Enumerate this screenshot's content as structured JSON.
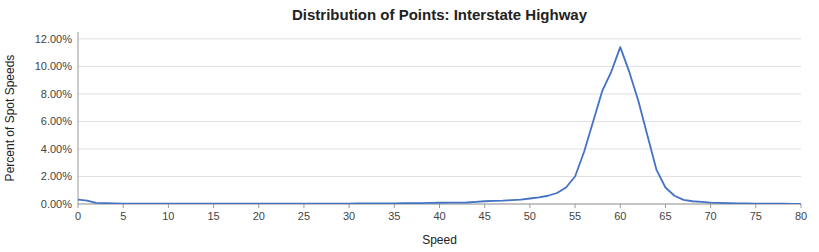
{
  "chart_data": {
    "type": "line",
    "title": "Distribution of Points:  Interstate Highway",
    "x_label": "Speed",
    "y_label": "Percent of Spot Speeds",
    "x": [
      0,
      1,
      2,
      3,
      4,
      5,
      6,
      7,
      8,
      9,
      10,
      11,
      12,
      13,
      14,
      15,
      16,
      17,
      18,
      19,
      20,
      21,
      22,
      23,
      24,
      25,
      26,
      27,
      28,
      29,
      30,
      31,
      32,
      33,
      34,
      35,
      36,
      37,
      38,
      39,
      40,
      41,
      42,
      43,
      44,
      45,
      46,
      47,
      48,
      49,
      50,
      51,
      52,
      53,
      54,
      55,
      56,
      57,
      58,
      59,
      60,
      61,
      62,
      63,
      64,
      65,
      66,
      67,
      68,
      69,
      70,
      71,
      72,
      73,
      74,
      75,
      76,
      77,
      78,
      79,
      80
    ],
    "series": [
      {
        "color": "#4472C4",
        "values": [
          0.0032,
          0.0025,
          0.0008,
          0.0006,
          0.0004,
          0.0003,
          0.0002,
          0.0002,
          0.0002,
          0.0002,
          0.00025,
          0.00025,
          0.00025,
          0.0003,
          0.0003,
          0.0003,
          0.00025,
          0.00025,
          0.00025,
          0.00025,
          0.00025,
          0.00025,
          0.00025,
          0.00025,
          0.00025,
          0.0003,
          0.0003,
          0.0003,
          0.0003,
          0.0003,
          0.0003,
          0.0004,
          0.0004,
          0.0004,
          0.0005,
          0.0005,
          0.0006,
          0.0006,
          0.0007,
          0.0008,
          0.0009,
          0.001,
          0.001,
          0.0011,
          0.0015,
          0.002,
          0.0022,
          0.0024,
          0.0028,
          0.0032,
          0.004,
          0.0048,
          0.006,
          0.008,
          0.012,
          0.02,
          0.038,
          0.06,
          0.082,
          0.096,
          0.114,
          0.096,
          0.075,
          0.05,
          0.025,
          0.012,
          0.006,
          0.003,
          0.002,
          0.0015,
          0.001,
          0.0008,
          0.0006,
          0.0005,
          0.0004,
          0.0003,
          0.0003,
          0.0002,
          0.0002,
          0.0001,
          0.0001
        ]
      }
    ],
    "xlim": [
      0,
      80
    ],
    "ylim": [
      0,
      0.125
    ],
    "xticks": [
      0,
      5,
      10,
      15,
      20,
      25,
      30,
      35,
      40,
      45,
      50,
      55,
      60,
      65,
      70,
      75,
      80
    ],
    "yticks": [
      {
        "value": 0.0,
        "label": "0.00%"
      },
      {
        "value": 0.02,
        "label": "2.00%"
      },
      {
        "value": 0.04,
        "label": "4.00%"
      },
      {
        "value": 0.06,
        "label": "6.00%"
      },
      {
        "value": 0.08,
        "label": "8.00%"
      },
      {
        "value": 0.1,
        "label": "10.00%"
      },
      {
        "value": 0.12,
        "label": "12.00%"
      }
    ],
    "grid": true
  }
}
